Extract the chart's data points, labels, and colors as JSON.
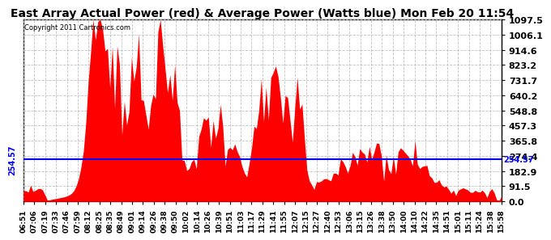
{
  "title": "East Array Actual Power (red) & Average Power (Watts blue) Mon Feb 20 11:54",
  "copyright": "Copyright 2011 Cartronics.com",
  "ymax": 1097.5,
  "ymin": 0.0,
  "yticks": [
    0.0,
    91.5,
    182.9,
    274.4,
    365.8,
    457.3,
    548.8,
    640.2,
    731.7,
    823.2,
    914.6,
    1006.1,
    1097.5
  ],
  "avg_power": 254.57,
  "avg_label": "254.57",
  "fill_color": "#FF0000",
  "line_color": "#0000FF",
  "background_color": "#FFFFFF",
  "grid_color": "#BBBBBB",
  "title_fontsize": 10,
  "x_labels": [
    "06:51",
    "07:06",
    "07:19",
    "07:33",
    "07:46",
    "07:59",
    "08:12",
    "08:25",
    "08:35",
    "08:49",
    "09:01",
    "09:14",
    "09:26",
    "09:38",
    "09:50",
    "10:02",
    "10:14",
    "10:26",
    "10:39",
    "10:51",
    "11:03",
    "11:17",
    "11:29",
    "11:41",
    "11:55",
    "12:07",
    "12:15",
    "12:27",
    "12:40",
    "12:53",
    "13:06",
    "13:15",
    "13:26",
    "13:38",
    "13:50",
    "14:00",
    "14:10",
    "14:22",
    "14:35",
    "14:51",
    "15:01",
    "15:11",
    "15:24",
    "15:38",
    "15:58"
  ]
}
